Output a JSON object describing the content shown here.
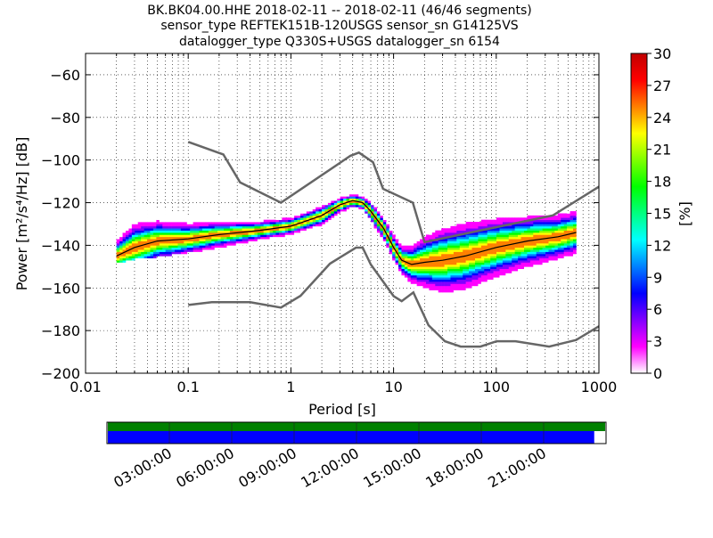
{
  "title": {
    "line1": "BK.BK04.00.HHE   2018-02-11 -- 2018-02-11  (46/46 segments)",
    "line2": "sensor_type REFTEK151B-120USGS sensor_sn G14125VS",
    "line3": "datalogger_type Q330S+USGS datalogger_sn 6154"
  },
  "chart_data": [
    {
      "type": "heatmap",
      "xlabel": "Period [s]",
      "ylabel": "Power [m²/s⁴/Hz] [dB]",
      "xscale": "log",
      "xlim": [
        0.01,
        1000
      ],
      "ylim": [
        -200,
        -50
      ],
      "x_ticks": [
        0.01,
        0.1,
        1,
        10,
        100,
        1000
      ],
      "x_tick_labels": [
        "0.01",
        "0.1",
        "1",
        "10",
        "100",
        "1000"
      ],
      "y_ticks": [
        -200,
        -180,
        -160,
        -140,
        -120,
        -100,
        -80,
        -60
      ],
      "y_tick_labels": [
        "−200",
        "−180",
        "−160",
        "−140",
        "−120",
        "−100",
        "−80",
        "−60"
      ],
      "grid": true,
      "colorbar": {
        "label": "[%]",
        "range": [
          0,
          30
        ],
        "ticks": [
          0,
          3,
          6,
          9,
          12,
          15,
          18,
          21,
          24,
          27,
          30
        ],
        "colors": [
          "#ffffff",
          "#ff00ff",
          "#8000ff",
          "#0000ff",
          "#0080ff",
          "#00ffff",
          "#00ff80",
          "#00ff00",
          "#80ff00",
          "#ffff00",
          "#ff8000",
          "#ff0000",
          "#c00000"
        ]
      },
      "series": [
        {
          "role": "new_high_noise_model",
          "color": "#666666",
          "x": [
            0.1,
            0.22,
            0.32,
            0.8,
            3.8,
            4.6,
            6.3,
            7.9,
            15.4,
            20,
            354.8,
            1000
          ],
          "y": [
            -91.5,
            -97.4,
            -110.5,
            -120.0,
            -98.0,
            -96.5,
            -101.0,
            -113.5,
            -120.0,
            -138.5,
            -126.0,
            -112.5
          ]
        },
        {
          "role": "new_low_noise_model",
          "color": "#666666",
          "x": [
            0.1,
            0.17,
            0.4,
            0.8,
            1.24,
            2.4,
            4.3,
            5.0,
            6.0,
            10.0,
            12.0,
            15.6,
            21.9,
            31.6,
            45.0,
            70.0,
            101.0,
            154.0,
            328.0,
            600.0,
            1000
          ],
          "y": [
            -168.0,
            -166.7,
            -166.7,
            -169.2,
            -163.7,
            -148.6,
            -141.1,
            -141.1,
            -149.0,
            -163.8,
            -166.2,
            -162.1,
            -177.5,
            -185.0,
            -187.5,
            -187.5,
            -185.0,
            -185.0,
            -187.5,
            -184.4,
            -178.0
          ]
        },
        {
          "role": "mode",
          "color": "#000000",
          "x": [
            0.02,
            0.03,
            0.05,
            0.1,
            0.2,
            0.5,
            1,
            2,
            3,
            4,
            5,
            6,
            8,
            10,
            12,
            15,
            20,
            30,
            50,
            100,
            200,
            400,
            600
          ],
          "y": [
            -145,
            -141,
            -138,
            -137,
            -135,
            -133,
            -131,
            -126,
            -121,
            -119,
            -120,
            -124,
            -132,
            -141,
            -147,
            -149,
            -148,
            -147,
            -145,
            -141,
            -138,
            -136,
            -134
          ]
        }
      ],
      "ppsd_band": {
        "x": [
          0.02,
          0.03,
          0.05,
          0.1,
          0.2,
          0.5,
          1,
          2,
          3,
          4,
          5,
          6,
          8,
          10,
          12,
          15,
          20,
          30,
          50,
          100,
          200,
          400,
          600
        ],
        "upper": [
          -132,
          -120,
          -123,
          -126,
          -127,
          -129,
          -127,
          -120,
          -116,
          -115,
          -116,
          -119,
          -126,
          -135,
          -139,
          -138,
          -136,
          -133,
          -130,
          -128,
          -127,
          -126,
          -124
        ],
        "lower": [
          -148,
          -146,
          -145,
          -143,
          -141,
          -139,
          -136,
          -130,
          -124,
          -122,
          -123,
          -129,
          -138,
          -148,
          -154,
          -158,
          -163,
          -168,
          -166,
          -160,
          -155,
          -150,
          -147
        ]
      }
    },
    {
      "type": "timeline",
      "x_tick_labels": [
        "03:00:00",
        "06:00:00",
        "09:00:00",
        "12:00:00",
        "15:00:00",
        "18:00:00",
        "21:00:00"
      ],
      "bars": [
        {
          "role": "data_availability",
          "color": "#008000",
          "fraction": 1.0
        },
        {
          "role": "ppsd_coverage",
          "color": "#0000ff",
          "fraction": 0.978
        }
      ]
    }
  ]
}
